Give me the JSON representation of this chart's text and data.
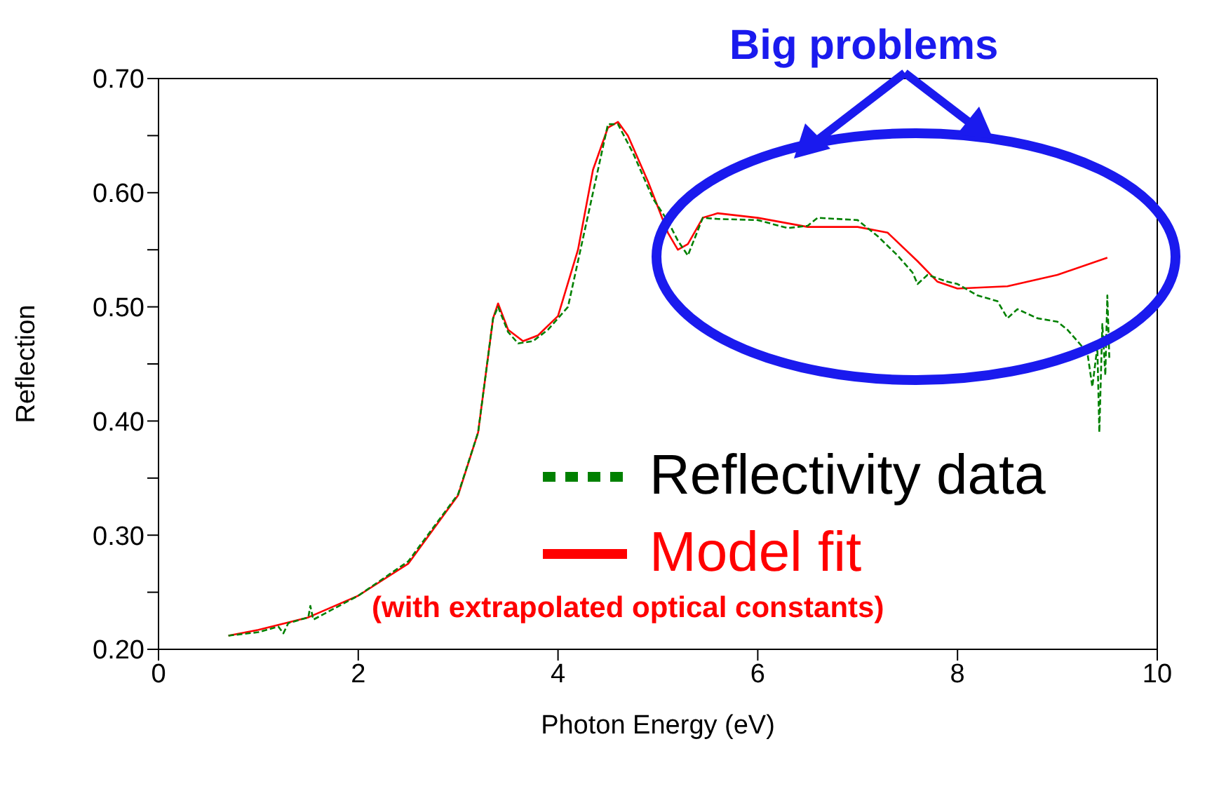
{
  "chart_data": {
    "type": "line",
    "xlabel": "Photon Energy (eV)",
    "ylabel": "Reflection",
    "xlim": [
      0,
      10
    ],
    "xticks": [
      0,
      2,
      4,
      6,
      8,
      10
    ],
    "ylim": [
      0.2,
      0.7
    ],
    "yticks": [
      {
        "value": 0.2,
        "label": "0.20"
      },
      {
        "value": 0.25,
        "label": null
      },
      {
        "value": 0.3,
        "label": "0.30"
      },
      {
        "value": 0.35,
        "label": null
      },
      {
        "value": 0.4,
        "label": "0.40"
      },
      {
        "value": 0.45,
        "label": null
      },
      {
        "value": 0.5,
        "label": "0.50"
      },
      {
        "value": 0.55,
        "label": null
      },
      {
        "value": 0.6,
        "label": "0.60"
      },
      {
        "value": 0.65,
        "label": null
      },
      {
        "value": 0.7,
        "label": "0.70"
      }
    ],
    "grid": false,
    "legend": "bottom right",
    "annotations": [
      "Big problems",
      "(with extrapolated optical constants)"
    ],
    "series": [
      {
        "name": "Reflectivity data",
        "color": "#008000",
        "line_style": "dashed",
        "x": [
          0.7,
          1.0,
          1.2,
          1.25,
          1.3,
          1.5,
          1.52,
          1.55,
          2.0,
          2.5,
          3.0,
          3.2,
          3.35,
          3.4,
          3.5,
          3.6,
          3.75,
          3.9,
          4.0,
          4.1,
          4.3,
          4.5,
          4.6,
          4.75,
          4.95,
          5.1,
          5.2,
          5.3,
          5.45,
          5.6,
          6.0,
          6.3,
          6.5,
          6.6,
          7.0,
          7.2,
          7.4,
          7.55,
          7.6,
          7.7,
          7.9,
          8.0,
          8.2,
          8.4,
          8.5,
          8.6,
          8.8,
          9.0,
          9.1,
          9.2,
          9.3,
          9.35,
          9.4,
          9.42,
          9.45,
          9.48,
          9.5,
          9.52
        ],
        "values": [
          0.212,
          0.215,
          0.22,
          0.214,
          0.223,
          0.228,
          0.238,
          0.226,
          0.247,
          0.277,
          0.336,
          0.39,
          0.49,
          0.5,
          0.478,
          0.468,
          0.47,
          0.48,
          0.49,
          0.5,
          0.58,
          0.66,
          0.66,
          0.635,
          0.595,
          0.575,
          0.558,
          0.545,
          0.578,
          0.577,
          0.576,
          0.569,
          0.571,
          0.578,
          0.576,
          0.562,
          0.545,
          0.53,
          0.52,
          0.528,
          0.522,
          0.52,
          0.51,
          0.505,
          0.49,
          0.498,
          0.49,
          0.487,
          0.48,
          0.47,
          0.46,
          0.43,
          0.465,
          0.39,
          0.485,
          0.44,
          0.51,
          0.455
        ]
      },
      {
        "name": "Model fit",
        "color": "#ff0000",
        "line_style": "solid",
        "x": [
          0.7,
          1.0,
          1.5,
          2.0,
          2.5,
          3.0,
          3.2,
          3.35,
          3.4,
          3.5,
          3.65,
          3.8,
          4.0,
          4.2,
          4.35,
          4.5,
          4.6,
          4.7,
          4.9,
          5.1,
          5.2,
          5.3,
          5.45,
          5.6,
          6.0,
          6.5,
          7.0,
          7.3,
          7.6,
          7.8,
          8.0,
          8.5,
          9.0,
          9.5
        ],
        "values": [
          0.212,
          0.217,
          0.228,
          0.247,
          0.275,
          0.335,
          0.39,
          0.49,
          0.503,
          0.48,
          0.47,
          0.475,
          0.492,
          0.55,
          0.62,
          0.657,
          0.662,
          0.65,
          0.61,
          0.565,
          0.55,
          0.555,
          0.578,
          0.582,
          0.578,
          0.57,
          0.57,
          0.565,
          0.54,
          0.522,
          0.516,
          0.518,
          0.528,
          0.543
        ]
      }
    ]
  }
}
